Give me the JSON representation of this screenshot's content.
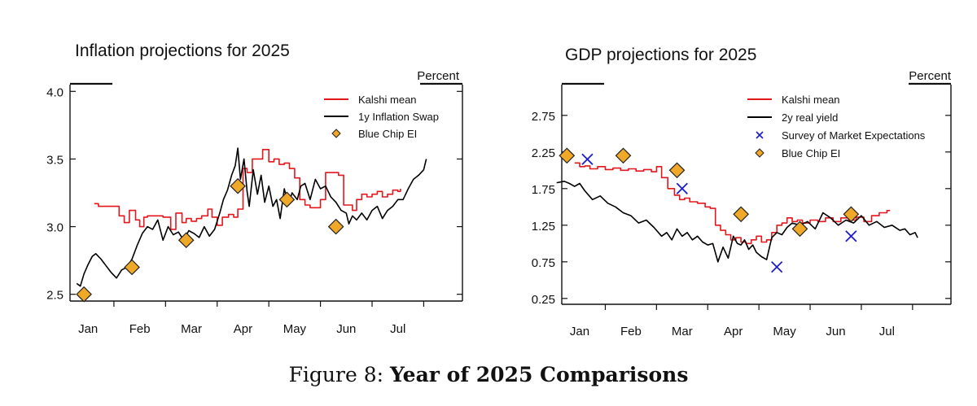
{
  "caption": {
    "label": "Figure 8:",
    "title": "Year of 2025 Comparisons"
  },
  "colors": {
    "kalshi": "#e3161c",
    "swap": "#000000",
    "bluechip": "#f0a828",
    "survey": "#1c1ccc"
  },
  "chart_data": [
    {
      "type": "line",
      "title": "Inflation projections for 2025",
      "unit_label": "Percent",
      "xlabel": "",
      "ylabel": "Percent",
      "x_ticks": [
        "Jan",
        "Feb",
        "Mar",
        "Apr",
        "May",
        "Jun",
        "Jul"
      ],
      "xlim": [
        -0.35,
        7.25
      ],
      "ylim": [
        2.45,
        4.05
      ],
      "y_ticks": [
        "2.5",
        "3.0",
        "3.5",
        "4.0"
      ],
      "y_tick_values": [
        2.5,
        3.0,
        3.5,
        4.0
      ],
      "grid": false,
      "legend": "top-right",
      "legend_entries": [
        "Kalshi mean",
        "1y Inflation Swap",
        "Blue Chip EI"
      ],
      "series": [
        {
          "name": "Kalshi mean",
          "style": "step",
          "x": [
            0.12,
            0.2,
            0.5,
            0.6,
            0.7,
            0.8,
            0.92,
            1.0,
            1.08,
            1.15,
            1.25,
            1.45,
            1.6,
            1.7,
            1.82,
            1.9,
            2.0,
            2.1,
            2.2,
            2.32,
            2.4,
            2.5,
            2.6,
            2.72,
            2.82,
            2.9,
            3.0,
            3.08,
            3.18,
            3.28,
            3.38,
            3.5,
            3.6,
            3.7,
            3.8,
            3.9,
            4.0,
            4.1,
            4.2,
            4.3,
            4.4,
            4.5,
            4.6,
            4.7,
            4.85,
            4.95,
            5.12,
            5.2,
            5.3,
            5.4,
            5.5,
            5.6,
            5.7,
            5.8,
            5.9,
            6.0,
            6.05
          ],
          "y": [
            3.17,
            3.15,
            3.15,
            3.08,
            3.03,
            3.12,
            3.05,
            3.0,
            3.07,
            3.08,
            3.08,
            3.07,
            2.98,
            3.1,
            3.03,
            3.06,
            3.04,
            3.06,
            3.08,
            3.13,
            3.07,
            3.01,
            3.07,
            3.09,
            3.07,
            3.13,
            3.43,
            3.4,
            3.5,
            3.5,
            3.57,
            3.48,
            3.5,
            3.46,
            3.47,
            3.43,
            3.36,
            3.2,
            3.16,
            3.14,
            3.14,
            3.2,
            3.4,
            3.4,
            3.38,
            3.16,
            3.12,
            3.2,
            3.24,
            3.22,
            3.24,
            3.26,
            3.22,
            3.24,
            3.27,
            3.26,
            3.28
          ]
        },
        {
          "name": "1y Inflation Swap",
          "style": "line",
          "x": [
            -0.22,
            -0.15,
            -0.08,
            0.0,
            0.08,
            0.15,
            0.25,
            0.35,
            0.45,
            0.55,
            0.65,
            0.75,
            0.85,
            0.95,
            1.05,
            1.15,
            1.25,
            1.35,
            1.45,
            1.55,
            1.65,
            1.75,
            1.85,
            1.95,
            2.05,
            2.15,
            2.25,
            2.35,
            2.45,
            2.55,
            2.62,
            2.7,
            2.78,
            2.85,
            2.9,
            2.95,
            3.02,
            3.08,
            3.12,
            3.2,
            3.28,
            3.35,
            3.42,
            3.5,
            3.58,
            3.65,
            3.72,
            3.8,
            3.88,
            3.95,
            4.05,
            4.12,
            4.2,
            4.3,
            4.4,
            4.5,
            4.6,
            4.7,
            4.8,
            4.9,
            5.0,
            5.05,
            5.12,
            5.2,
            5.3,
            5.4,
            5.5,
            5.6,
            5.7,
            5.8,
            5.9,
            6.0,
            6.1,
            6.2,
            6.3,
            6.4,
            6.5,
            6.55
          ],
          "y": [
            2.58,
            2.56,
            2.65,
            2.72,
            2.78,
            2.8,
            2.76,
            2.71,
            2.66,
            2.62,
            2.68,
            2.7,
            2.76,
            2.86,
            2.95,
            3.0,
            2.98,
            3.05,
            2.9,
            3.0,
            2.94,
            2.96,
            2.9,
            2.97,
            2.95,
            2.92,
            3.0,
            2.93,
            2.98,
            3.1,
            3.2,
            3.27,
            3.38,
            3.45,
            3.58,
            3.35,
            3.5,
            3.26,
            3.15,
            3.42,
            3.24,
            3.38,
            3.18,
            3.3,
            3.15,
            3.2,
            3.06,
            3.28,
            3.16,
            3.25,
            3.2,
            3.3,
            3.32,
            3.2,
            3.35,
            3.28,
            3.3,
            3.22,
            3.18,
            3.12,
            3.1,
            3.02,
            3.08,
            3.05,
            3.1,
            3.05,
            3.12,
            3.15,
            3.06,
            3.12,
            3.15,
            3.2,
            3.2,
            3.28,
            3.35,
            3.38,
            3.42,
            3.5
          ]
        },
        {
          "name": "Blue Chip EI",
          "style": "diamond",
          "x": [
            -0.08,
            0.85,
            1.9,
            2.9,
            3.85,
            4.8
          ],
          "y": [
            2.5,
            2.7,
            2.9,
            3.3,
            3.2,
            3.0
          ]
        }
      ]
    },
    {
      "type": "line",
      "title": "GDP projections for 2025",
      "unit_label": "Percent",
      "xlabel": "",
      "ylabel": "Percent",
      "x_ticks": [
        "Jan",
        "Feb",
        "Mar",
        "Apr",
        "May",
        "Jun",
        "Jul"
      ],
      "xlim": [
        -0.35,
        7.25
      ],
      "ylim": [
        0.17,
        3.17
      ],
      "y_ticks": [
        "0.25",
        "0.75",
        "1.25",
        "1.75",
        "2.25",
        "2.75"
      ],
      "y_tick_values": [
        0.25,
        0.75,
        1.25,
        1.75,
        2.25,
        2.75
      ],
      "grid": false,
      "legend": "top-right",
      "legend_entries": [
        "Kalshi mean",
        "2y real yield",
        "Survey of Market Expectations",
        "Blue Chip EI"
      ],
      "series": [
        {
          "name": "Kalshi mean",
          "style": "step",
          "x": [
            -0.1,
            0.0,
            0.1,
            0.2,
            0.35,
            0.5,
            0.65,
            0.8,
            0.95,
            1.1,
            1.25,
            1.4,
            1.5,
            1.6,
            1.72,
            1.85,
            1.95,
            2.05,
            2.15,
            2.3,
            2.45,
            2.55,
            2.65,
            2.75,
            2.85,
            2.95,
            3.05,
            3.15,
            3.25,
            3.35,
            3.45,
            3.55,
            3.65,
            3.75,
            3.85,
            3.95,
            4.05,
            4.15,
            4.25,
            4.35,
            4.5,
            4.65,
            4.8,
            4.95,
            5.1,
            5.25,
            5.4,
            5.55,
            5.7,
            5.85,
            6.0,
            6.05
          ],
          "y": [
            2.1,
            2.05,
            2.06,
            2.02,
            2.05,
            2.01,
            2.03,
            2.0,
            2.02,
            1.99,
            2.01,
            1.98,
            2.05,
            1.9,
            1.75,
            1.66,
            1.6,
            1.62,
            1.57,
            1.55,
            1.5,
            1.48,
            1.25,
            1.18,
            1.12,
            1.05,
            1.08,
            1.02,
            1.0,
            1.05,
            1.1,
            1.02,
            1.05,
            1.15,
            1.25,
            1.28,
            1.35,
            1.3,
            1.32,
            1.28,
            1.32,
            1.3,
            1.35,
            1.3,
            1.35,
            1.32,
            1.36,
            1.3,
            1.38,
            1.42,
            1.45,
            1.46
          ]
        },
        {
          "name": "2y real yield",
          "style": "line",
          "x": [
            -0.45,
            -0.3,
            -0.2,
            -0.1,
            0.0,
            0.1,
            0.25,
            0.4,
            0.55,
            0.7,
            0.85,
            1.0,
            1.15,
            1.3,
            1.45,
            1.6,
            1.7,
            1.8,
            1.9,
            2.0,
            2.1,
            2.2,
            2.3,
            2.4,
            2.5,
            2.6,
            2.7,
            2.8,
            2.9,
            3.0,
            3.08,
            3.15,
            3.22,
            3.3,
            3.38,
            3.45,
            3.55,
            3.65,
            3.75,
            3.85,
            3.95,
            4.05,
            4.15,
            4.3,
            4.45,
            4.6,
            4.75,
            4.9,
            5.05,
            5.2,
            5.35,
            5.5,
            5.65,
            5.8,
            5.95,
            6.1,
            6.25,
            6.35,
            6.45,
            6.55,
            6.6
          ],
          "y": [
            1.83,
            1.85,
            1.82,
            1.78,
            1.82,
            1.72,
            1.6,
            1.65,
            1.55,
            1.5,
            1.42,
            1.38,
            1.28,
            1.32,
            1.22,
            1.1,
            1.15,
            1.05,
            1.2,
            1.1,
            1.15,
            1.05,
            1.1,
            1.02,
            0.98,
            1.0,
            0.75,
            0.95,
            0.8,
            1.1,
            1.0,
            0.98,
            1.05,
            0.92,
            0.98,
            0.88,
            0.82,
            0.78,
            1.08,
            1.15,
            1.12,
            1.22,
            1.28,
            1.25,
            1.3,
            1.2,
            1.42,
            1.35,
            1.25,
            1.32,
            1.28,
            1.38,
            1.25,
            1.3,
            1.22,
            1.25,
            1.18,
            1.2,
            1.12,
            1.15,
            1.08
          ]
        },
        {
          "name": "Survey of Market Expectations",
          "style": "cross",
          "x": [
            0.15,
            2.0,
            3.85,
            5.3
          ],
          "y": [
            2.15,
            1.75,
            0.68,
            1.1
          ]
        },
        {
          "name": "Blue Chip EI",
          "style": "diamond",
          "x": [
            -0.25,
            0.85,
            1.9,
            3.15,
            4.3,
            5.3
          ],
          "y": [
            2.2,
            2.2,
            2.0,
            1.4,
            1.2,
            1.4
          ]
        }
      ]
    }
  ]
}
